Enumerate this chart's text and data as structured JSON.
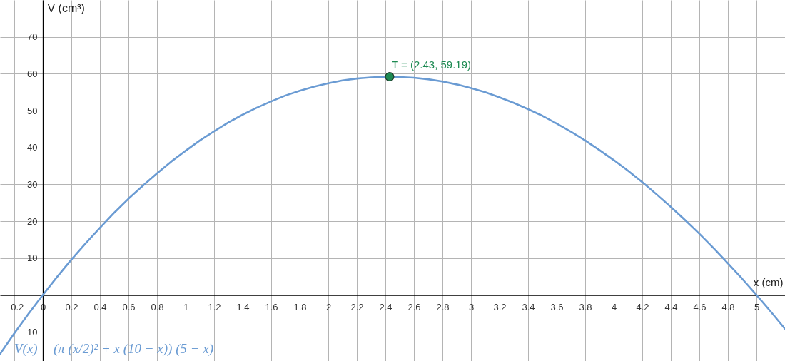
{
  "chart_data": {
    "type": "line",
    "xlabel": "x (cm)",
    "ylabel": "V (cm³)",
    "xlim": [
      -0.3,
      5.2
    ],
    "ylim": [
      -17.9,
      80
    ],
    "xticks": [
      -0.2,
      0,
      0.2,
      0.4,
      0.6,
      0.8,
      1,
      1.2,
      1.4,
      1.6,
      1.8,
      2,
      2.2,
      2.4,
      2.6,
      2.8,
      3,
      3.2,
      3.4,
      3.6,
      3.8,
      4,
      4.2,
      4.4,
      4.6,
      4.8,
      5
    ],
    "yticks": [
      -10,
      10,
      20,
      30,
      40,
      50,
      60,
      70
    ],
    "grid": true,
    "line_style": "solid",
    "series": [
      {
        "name": "V(x) = (π (x/2)² + x (10 − x)) (5 − x)",
        "color": "#6a9bd3",
        "x": [
          -0.3,
          -0.2,
          -0.1,
          0,
          0.1,
          0.2,
          0.3,
          0.4,
          0.5,
          0.6,
          0.7,
          0.8,
          0.9,
          1.0,
          1.1,
          1.2,
          1.3,
          1.4,
          1.5,
          1.6,
          1.7,
          1.8,
          1.9,
          2.0,
          2.1,
          2.2,
          2.3,
          2.4,
          2.5,
          2.6,
          2.7,
          2.8,
          2.9,
          3.0,
          3.1,
          3.2,
          3.3,
          3.4,
          3.5,
          3.6,
          3.7,
          3.8,
          3.9,
          4.0,
          4.1,
          4.2,
          4.3,
          4.4,
          4.5,
          4.6,
          4.7,
          4.8,
          4.9,
          5.0,
          5.1,
          5.2
        ],
        "values": [
          -16.0,
          -10.4,
          -5.1,
          0,
          4.9,
          9.6,
          14.0,
          18.2,
          22.3,
          26.1,
          29.6,
          33.0,
          36.2,
          39.1,
          41.9,
          44.4,
          46.8,
          48.9,
          50.8,
          52.5,
          54.1,
          55.4,
          56.5,
          57.4,
          58.2,
          58.7,
          59.0,
          59.2,
          59.1,
          58.9,
          58.5,
          57.9,
          57.1,
          56.1,
          55.0,
          53.6,
          52.1,
          50.4,
          48.6,
          46.5,
          44.3,
          41.9,
          39.3,
          36.6,
          33.7,
          30.6,
          27.3,
          23.9,
          20.3,
          16.6,
          12.7,
          8.6,
          4.4,
          0,
          -4.5,
          -9.2
        ]
      },
      {
        "type": "scatter",
        "color": "#1d8a52",
        "marker": "circle",
        "x": [
          2.43
        ],
        "values": [
          59.19
        ]
      }
    ],
    "annotations": [
      {
        "text": "T = (2.43, 59.19)",
        "x": 2.43,
        "y": 59.19
      }
    ]
  }
}
